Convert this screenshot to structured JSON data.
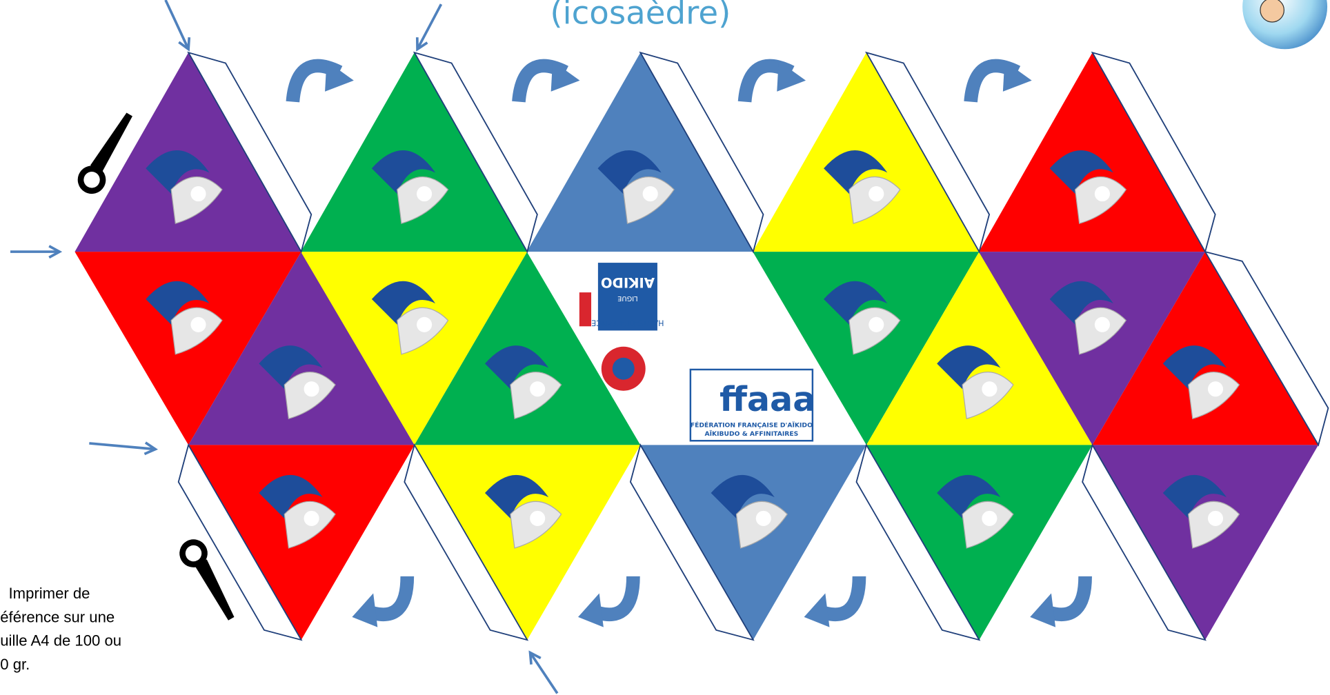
{
  "header": {
    "title": "(icosaèdre)"
  },
  "note": {
    "lines": [
      "Imprimer de",
      "éférence sur une",
      "uille A4 de 100 ou",
      "0 gr."
    ]
  },
  "logos": {
    "league": {
      "region": "HAUTS-DE-FRANCE",
      "label": "LIGUE",
      "name": "AIKIDO"
    },
    "federation": {
      "acronym": "ffaaa",
      "line1": "FÉDÉRATION FRANÇAISE D'AÏKIDO",
      "line2": "AÏKIBUDO & AFFINITAIRES"
    }
  }
}
